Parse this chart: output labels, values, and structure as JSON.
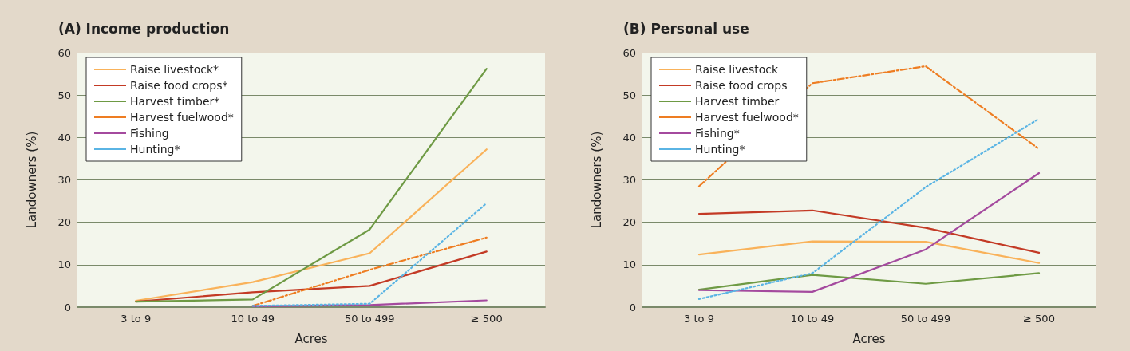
{
  "chart_data": [
    {
      "type": "line",
      "title": "(A) Income production",
      "xlabel": "Acres",
      "ylabel": "Landowners (%)",
      "categories": [
        "3 to 9",
        "10 to 49",
        "50 to 499",
        "≥ 500"
      ],
      "ylim": [
        0,
        60
      ],
      "yticks": [
        0,
        10,
        20,
        30,
        40,
        50,
        60
      ],
      "grid": "y",
      "legend": "top left",
      "marker": "none",
      "series": [
        {
          "name": "Raise livestock*",
          "color": "#f9b25a",
          "line_style": "solid",
          "values": [
            1.5,
            5.9,
            12.7,
            37.2
          ]
        },
        {
          "name": "Raise food crops*",
          "color": "#c33a25",
          "line_style": "solid",
          "values": [
            1.3,
            3.5,
            5.0,
            13.1
          ]
        },
        {
          "name": "Harvest timber*",
          "color": "#6e9a44",
          "line_style": "solid",
          "values": [
            1.3,
            1.8,
            18.3,
            56.2
          ]
        },
        {
          "name": "Harvest fuelwood*",
          "color": "#ee7d22",
          "line_style": "dashed",
          "values": [
            null,
            0.3,
            8.8,
            16.4
          ]
        },
        {
          "name": "Fishing",
          "color": "#a44a9e",
          "line_style": "solid",
          "values": [
            null,
            0.2,
            0.5,
            1.6
          ]
        },
        {
          "name": "Hunting*",
          "color": "#5ab4e4",
          "line_style": "dotted",
          "values": [
            null,
            0.3,
            0.8,
            24.5
          ]
        }
      ]
    },
    {
      "type": "line",
      "title": "(B) Personal use",
      "xlabel": "Acres",
      "ylabel": "Landowners (%)",
      "categories": [
        "3 to 9",
        "10 to 49",
        "50 to 499",
        "≥ 500"
      ],
      "ylim": [
        0,
        60
      ],
      "yticks": [
        0,
        10,
        20,
        30,
        40,
        50,
        60
      ],
      "grid": "y",
      "legend": "top left",
      "marker": "none",
      "series": [
        {
          "name": "Raise livestock",
          "color": "#f9b25a",
          "line_style": "solid",
          "values": [
            12.4,
            15.5,
            15.4,
            10.4
          ]
        },
        {
          "name": "Raise food crops",
          "color": "#c33a25",
          "line_style": "solid",
          "values": [
            22.0,
            22.8,
            18.7,
            12.8
          ]
        },
        {
          "name": "Harvest timber",
          "color": "#6e9a44",
          "line_style": "solid",
          "values": [
            4.1,
            7.6,
            5.5,
            8.0
          ]
        },
        {
          "name": "Harvest fuelwood*",
          "color": "#ee7d22",
          "line_style": "dashed",
          "values": [
            28.5,
            52.8,
            56.8,
            37.3
          ]
        },
        {
          "name": "Fishing*",
          "color": "#a44a9e",
          "line_style": "solid",
          "values": [
            4.0,
            3.6,
            13.6,
            31.6
          ]
        },
        {
          "name": "Hunting*",
          "color": "#5ab4e4",
          "line_style": "dotted",
          "values": [
            1.9,
            8.0,
            28.3,
            44.4
          ]
        }
      ]
    }
  ]
}
